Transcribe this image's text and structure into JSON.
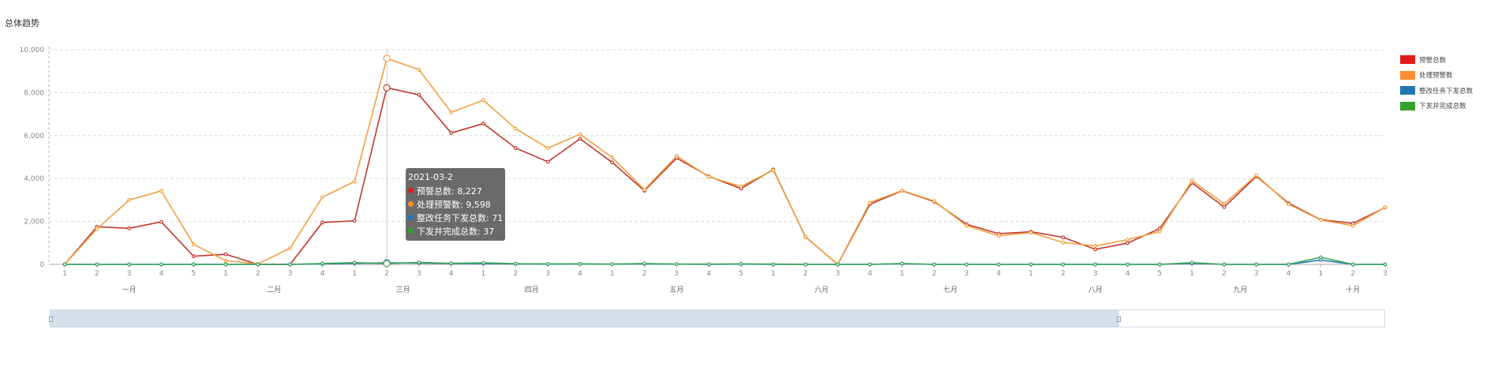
{
  "page": {
    "title": "总体趋势"
  },
  "legend": [
    {
      "label": "预警总数",
      "color": "#e31a1c"
    },
    {
      "label": "处理预警数",
      "color": "#ff8c2e"
    },
    {
      "label": "整改任务下发总数",
      "color": "#1f78b4"
    },
    {
      "label": "下发并完成总数",
      "color": "#33a02c"
    }
  ],
  "tooltip": {
    "date": "2021-03-2",
    "rows": [
      {
        "label": "预警总数: 8,227",
        "color": "#e31a1c"
      },
      {
        "label": "处理预警数: 9,598",
        "color": "#ff8c2e"
      },
      {
        "label": "整改任务下发总数: 71",
        "color": "#1f78b4"
      },
      {
        "label": "下发并完成总数: 37",
        "color": "#33a02c"
      }
    ]
  },
  "zoom": {
    "start_percent": 0,
    "end_percent": 80
  },
  "chart_data": {
    "type": "line",
    "title": "总体趋势",
    "ylim": [
      0,
      10000
    ],
    "y_ticks": [
      "0",
      "2,000",
      "4,000",
      "6,000",
      "8,000",
      "10,000"
    ],
    "grid": true,
    "legend_position": "right",
    "x_week_labels": [
      "1",
      "2",
      "3",
      "4",
      "5",
      "1",
      "2",
      "3",
      "4",
      "1",
      "2",
      "3",
      "4",
      "1",
      "2",
      "3",
      "4",
      "1",
      "2",
      "3",
      "4",
      "5",
      "1",
      "2",
      "3",
      "4",
      "1",
      "2",
      "3",
      "4",
      "1",
      "2",
      "3",
      "4",
      "5",
      "1",
      "2",
      "3",
      "4",
      "1",
      "2",
      "3"
    ],
    "x_dates": [
      "2021-01-1",
      "2021-01-2",
      "2021-01-3",
      "2021-01-4",
      "2021-01-5",
      "2021-02-1",
      "2021-02-2",
      "2021-02-3",
      "2021-02-4",
      "2021-03-1",
      "2021-03-2",
      "2021-03-3",
      "2021-03-4",
      "2021-04-1",
      "2021-04-2",
      "2021-04-3",
      "2021-04-4",
      "2021-05-1",
      "2021-05-2",
      "2021-05-3",
      "2021-05-4",
      "2021-05-5",
      "2021-06-1",
      "2021-06-2",
      "2021-06-3",
      "2021-06-4",
      "2021-07-1",
      "2021-07-2",
      "2021-07-3",
      "2021-07-4",
      "2021-08-1",
      "2021-08-2",
      "2021-08-3",
      "2021-08-4",
      "2021-08-5",
      "2021-09-1",
      "2021-09-2",
      "2021-09-3",
      "2021-09-4",
      "2021-10-1",
      "2021-10-2",
      "2021-10-3"
    ],
    "month_labels": [
      {
        "label": "一月",
        "center_index": 2
      },
      {
        "label": "二月",
        "center_index": 6.5
      },
      {
        "label": "三月",
        "center_index": 10.5
      },
      {
        "label": "四月",
        "center_index": 14.5
      },
      {
        "label": "五月",
        "center_index": 19
      },
      {
        "label": "六月",
        "center_index": 23.5
      },
      {
        "label": "七月",
        "center_index": 27.5
      },
      {
        "label": "八月",
        "center_index": 32
      },
      {
        "label": "九月",
        "center_index": 36.5
      },
      {
        "label": "十月",
        "center_index": 40
      }
    ],
    "highlight_index": 10,
    "series": [
      {
        "name": "预警总数",
        "color": "#c0392b",
        "values": [
          0,
          1750,
          1680,
          1980,
          380,
          470,
          0,
          0,
          1950,
          2030,
          8227,
          7900,
          6120,
          6560,
          5420,
          4780,
          5850,
          4750,
          3430,
          4950,
          4100,
          3530,
          4420,
          1280,
          0,
          2800,
          3430,
          2920,
          1870,
          1430,
          1520,
          1260,
          700,
          990,
          1670,
          3800,
          2670,
          4100,
          2850,
          2080,
          1910,
          2650
        ]
      },
      {
        "name": "处理预警数",
        "color": "#f0a040",
        "values": [
          0,
          1650,
          3000,
          3420,
          930,
          170,
          20,
          760,
          3130,
          3860,
          9598,
          9070,
          7080,
          7650,
          6320,
          5420,
          6060,
          4980,
          3480,
          5050,
          4080,
          3630,
          4390,
          1290,
          0,
          2880,
          3440,
          2950,
          1800,
          1330,
          1480,
          1020,
          860,
          1150,
          1530,
          3900,
          2820,
          4150,
          2800,
          2070,
          1800,
          2660
        ]
      },
      {
        "name": "整改任务下发总数",
        "color": "#2b7bb9",
        "values": [
          0,
          0,
          0,
          0,
          0,
          0,
          0,
          0,
          20,
          50,
          71,
          60,
          40,
          40,
          20,
          10,
          20,
          10,
          20,
          10,
          0,
          10,
          0,
          0,
          0,
          0,
          30,
          0,
          0,
          0,
          0,
          0,
          0,
          0,
          0,
          50,
          0,
          0,
          0,
          200,
          0,
          0
        ]
      },
      {
        "name": "下发并完成总数",
        "color": "#3aa356",
        "values": [
          0,
          0,
          0,
          0,
          0,
          0,
          0,
          0,
          40,
          80,
          37,
          90,
          50,
          70,
          30,
          20,
          20,
          10,
          40,
          10,
          10,
          20,
          10,
          0,
          0,
          0,
          40,
          0,
          0,
          0,
          0,
          0,
          0,
          0,
          0,
          80,
          0,
          0,
          0,
          330,
          0,
          0
        ]
      }
    ]
  }
}
